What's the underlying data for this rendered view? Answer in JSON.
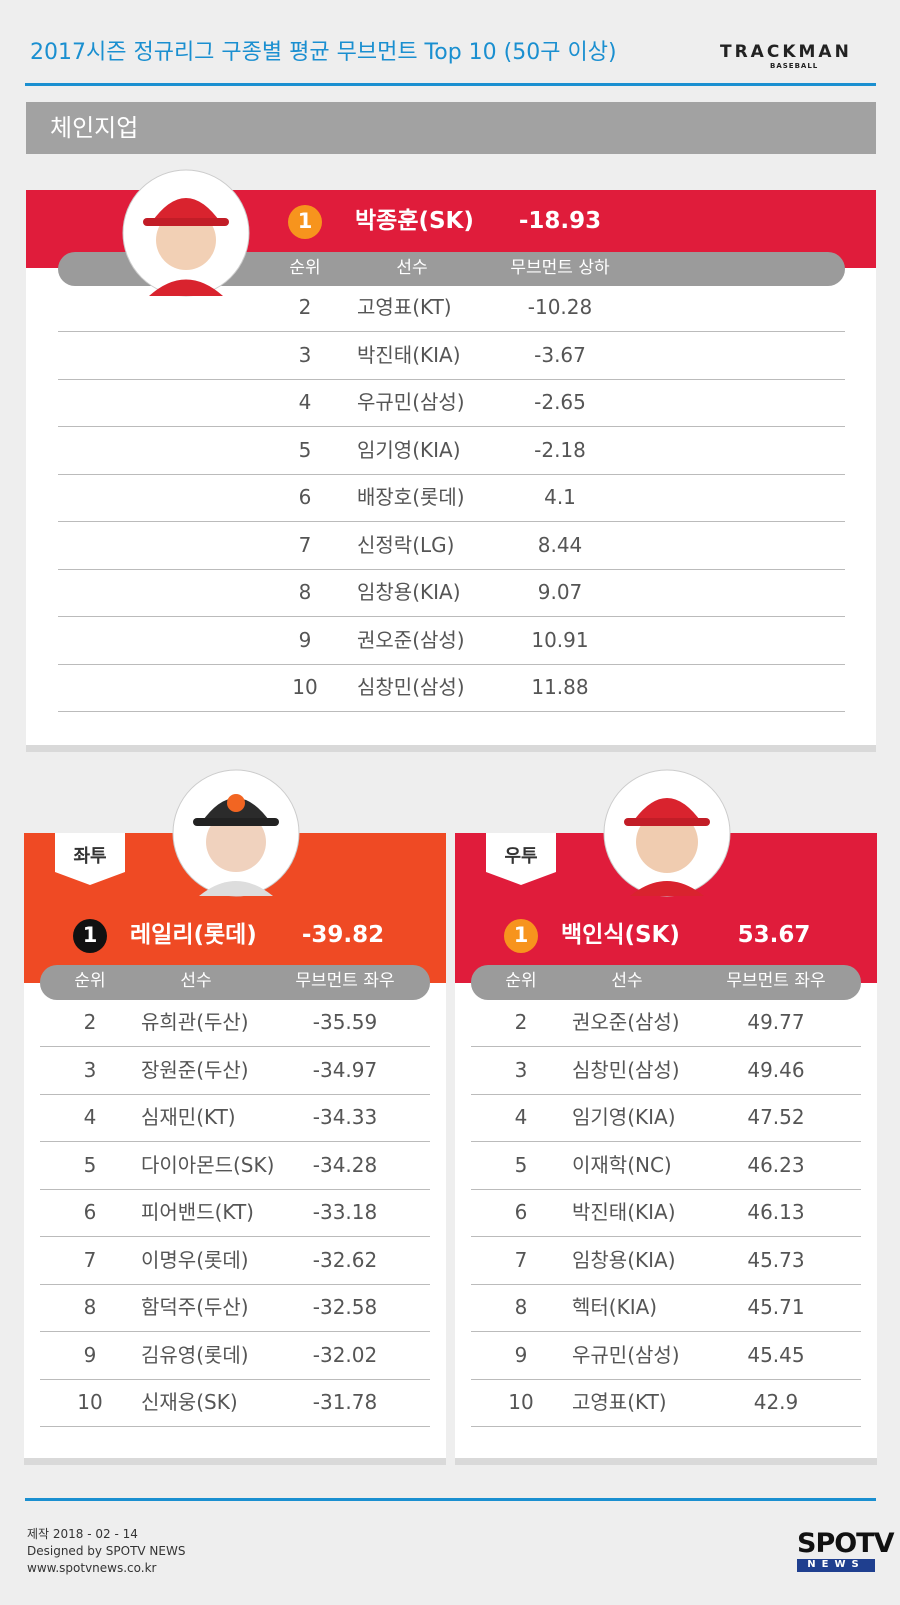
{
  "header": {
    "title": "2017시즌 정규리그 구종별 평균 무브먼트 Top 10 (50구 이상)",
    "logo": "TRACKMAN",
    "logo_sub": "BASEBALL"
  },
  "section": "체인지업",
  "top": {
    "first": {
      "rank": "1",
      "player": "박종훈(SK)",
      "value": "-18.93"
    },
    "columns": [
      "순위",
      "선수",
      "무브먼트 상하"
    ],
    "rows": [
      [
        "2",
        "고영표(KT)",
        "-10.28"
      ],
      [
        "3",
        "박진태(KIA)",
        "-3.67"
      ],
      [
        "4",
        "우규민(삼성)",
        "-2.65"
      ],
      [
        "5",
        "임기영(KIA)",
        "-2.18"
      ],
      [
        "6",
        "배장호(롯데)",
        "4.1"
      ],
      [
        "7",
        "신정락(LG)",
        "8.44"
      ],
      [
        "8",
        "임창용(KIA)",
        "9.07"
      ],
      [
        "9",
        "권오준(삼성)",
        "10.91"
      ],
      [
        "10",
        "심창민(삼성)",
        "11.88"
      ]
    ]
  },
  "left": {
    "label": "좌투",
    "first": {
      "rank": "1",
      "player": "레일리(롯데)",
      "value": "-39.82"
    },
    "columns": [
      "순위",
      "선수",
      "무브먼트 좌우"
    ],
    "rows": [
      [
        "2",
        "유희관(두산)",
        "-35.59"
      ],
      [
        "3",
        "장원준(두산)",
        "-34.97"
      ],
      [
        "4",
        "심재민(KT)",
        "-34.33"
      ],
      [
        "5",
        "다이아몬드(SK)",
        "-34.28"
      ],
      [
        "6",
        "피어밴드(KT)",
        "-33.18"
      ],
      [
        "7",
        "이명우(롯데)",
        "-32.62"
      ],
      [
        "8",
        "함덕주(두산)",
        "-32.58"
      ],
      [
        "9",
        "김유영(롯데)",
        "-32.02"
      ],
      [
        "10",
        "신재웅(SK)",
        "-31.78"
      ]
    ]
  },
  "right": {
    "label": "우투",
    "first": {
      "rank": "1",
      "player": "백인식(SK)",
      "value": "53.67"
    },
    "columns": [
      "순위",
      "선수",
      "무브먼트 좌우"
    ],
    "rows": [
      [
        "2",
        "권오준(삼성)",
        "49.77"
      ],
      [
        "3",
        "심창민(삼성)",
        "49.46"
      ],
      [
        "4",
        "임기영(KIA)",
        "47.52"
      ],
      [
        "5",
        "이재학(NC)",
        "46.23"
      ],
      [
        "6",
        "박진태(KIA)",
        "46.13"
      ],
      [
        "7",
        "임창용(KIA)",
        "45.73"
      ],
      [
        "8",
        "헥터(KIA)",
        "45.71"
      ],
      [
        "9",
        "우규민(삼성)",
        "45.45"
      ],
      [
        "10",
        "고영표(KT)",
        "42.9"
      ]
    ]
  },
  "footer": {
    "date": "제작 2018 - 02 - 14",
    "designed": "Designed by SPOTV NEWS",
    "url": "www.spotvnews.co.kr",
    "logo": "SPOTV",
    "logo_sub": "NEWS"
  }
}
